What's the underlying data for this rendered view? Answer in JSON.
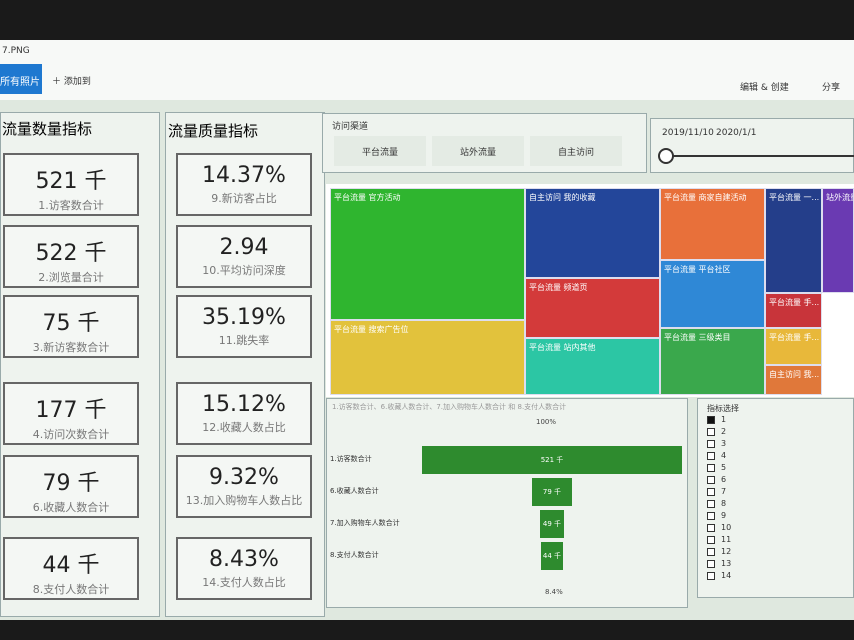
{
  "window": {
    "title": "7.PNG",
    "all_photos": "所有照片",
    "add_to": "添加到",
    "edit_create": "编辑 & 创建",
    "share": "分享"
  },
  "quantity_panel": {
    "title": "流量数量指标",
    "cards": [
      {
        "value": "521 千",
        "label": "1.访客数合计"
      },
      {
        "value": "522 千",
        "label": "2.浏览量合计"
      },
      {
        "value": "75 千",
        "label": "3.新访客数合计"
      },
      {
        "value": "177 千",
        "label": "4.访问次数合计"
      },
      {
        "value": "79 千",
        "label": "6.收藏人数合计"
      },
      {
        "value": "44 千",
        "label": "8.支付人数合计"
      }
    ]
  },
  "quality_panel": {
    "title": "流量质量指标",
    "cards": [
      {
        "value": "14.37%",
        "label": "9.新访客占比"
      },
      {
        "value": "2.94",
        "label": "10.平均访问深度"
      },
      {
        "value": "35.19%",
        "label": "11.跳失率"
      },
      {
        "value": "15.12%",
        "label": "12.收藏人数占比"
      },
      {
        "value": "9.32%",
        "label": "13.加入购物车人数占比"
      },
      {
        "value": "8.43%",
        "label": "14.支付人数占比"
      }
    ]
  },
  "channel_slicer": {
    "title": "访问渠道",
    "options": [
      "平台流量",
      "站外流量",
      "自主访问"
    ]
  },
  "date_slicer": {
    "start": "2019/11/10",
    "end": "2020/1/1"
  },
  "treemap": {
    "tiles": [
      "平台流量 官方活动",
      "平台流量 搜索广告位",
      "自主访问 我的收藏",
      "平台流量 频道页",
      "平台流量 站内其他",
      "平台流量 商家自建活动",
      "平台流量 平台社区",
      "平台流量 三级类目",
      "平台流量 一...",
      "站外流量",
      "平台流量 手...",
      "平台流量 手...",
      "自主访问 我..."
    ]
  },
  "funnel": {
    "title": "1.访客数合计、6.收藏人数合计、7.加入购物车人数合计 和 8.支付人数合计",
    "top_label": "100%",
    "bottom_label": "8.4%",
    "stages": [
      {
        "name": "1.访客数合计",
        "value": 521,
        "value_label": "521 千"
      },
      {
        "name": "6.收藏人数合计",
        "value": 79,
        "value_label": "79 千"
      },
      {
        "name": "7.加入购物车人数合计",
        "value": 49,
        "value_label": "49 千"
      },
      {
        "name": "8.支付人数合计",
        "value": 44,
        "value_label": "44 千"
      }
    ]
  },
  "metric_selector": {
    "title": "指标选择",
    "selected": "1",
    "options": [
      "1",
      "2",
      "3",
      "4",
      "5",
      "6",
      "7",
      "8",
      "9",
      "10",
      "11",
      "12",
      "13",
      "14"
    ]
  }
}
